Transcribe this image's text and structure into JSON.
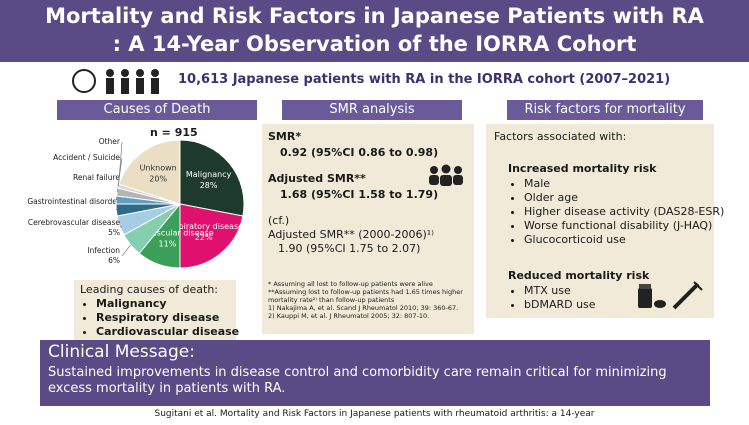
{
  "header": {
    "title_line1": "Mortality and Risk Factors in Japanese Patients with RA",
    "title_line2": ": A 14-Year Observation of the IORRA Cohort"
  },
  "cohort": "10,613 Japanese patients with RA in the IORRA cohort (2007–2021)",
  "causes": {
    "heading": "Causes of Death",
    "n": "n = 915",
    "leading_title": "Leading causes of death:",
    "leading": [
      "Malignancy",
      "Respiratory disease",
      "Cardiovascular disease"
    ]
  },
  "chart_data": {
    "type": "pie",
    "categories": [
      "Malignancy",
      "Respiratory disease",
      "Cardiovascular disease",
      "Infection",
      "Cerebrovascular disease",
      "Gastrointestinal disorder",
      "Renal failure",
      "Accident / Suicide",
      "Other",
      "Unknown"
    ],
    "values": [
      28,
      22,
      11,
      6,
      5,
      3,
      2,
      2,
      1,
      20
    ],
    "value_labels": [
      "28%",
      "22%",
      "11%",
      "6%",
      "5%",
      null,
      null,
      null,
      null,
      "20%"
    ],
    "colors": [
      "#1e3a2c",
      "#e0106e",
      "#3a9f58",
      "#86cfae",
      "#a6cde3",
      "#2e6b8a",
      "#5fa0c0",
      "#b5b5b5",
      "#d8d8d8",
      "#eadfc4"
    ]
  },
  "smr": {
    "heading": "SMR analysis",
    "smr_label": "SMR*",
    "smr_value": "0.92 (95%CI 0.86 to 0.98)",
    "adjusted_label": "Adjusted SMR**",
    "adjusted_value": "1.68 (95%CI 1.58 to 1.79)",
    "cf": "(cf.)",
    "historical_label": "Adjusted SMR** (2000-2006)¹⁾",
    "historical_value": "1.90 (95%CI 1.75 to 2.07)",
    "notes": [
      "* Assuming all lost to follow-up patients were alive",
      "**Assuming lost to follow-up patients had 1.65 times higher mortality rate²⁾ than follow-up patients",
      "1) Nakajima A, et al. Scand J Rheumatol 2010; 39: 360-67.",
      "2) Kauppi M, et al. J Rheumatol 2005; 32: 807-10."
    ]
  },
  "risk": {
    "heading": "Risk factors for mortality",
    "intro": "Factors associated with:",
    "increased_heading": "Increased mortality risk",
    "increased": [
      "Male",
      "Older age",
      "Higher disease activity (DAS28-ESR)",
      "Worse functional disability (J-HAQ)",
      "Glucocorticoid use"
    ],
    "reduced_heading": "Reduced mortality risk",
    "reduced": [
      "MTX use",
      "bDMARD use"
    ]
  },
  "clinical": {
    "heading": "Clinical Message:",
    "text": "Sustained improvements in disease control and comorbidity care remain critical for minimizing excess mortality in patients with RA."
  },
  "footer": {
    "citation": "Sugitani et al. Mortality and Risk Factors in Japanese patients with rheumatoid arthritis: a 14-year"
  }
}
